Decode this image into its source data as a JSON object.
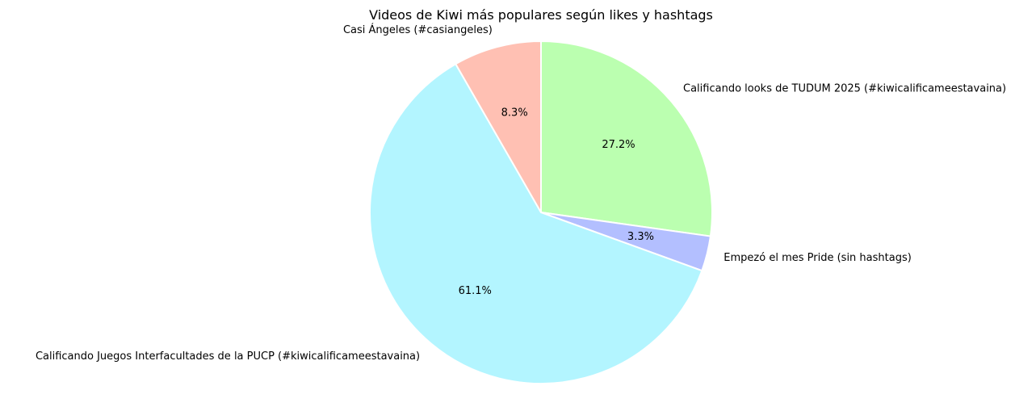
{
  "chart_data": {
    "type": "pie",
    "title": "Videos de Kiwi más populares según likes y hashtags",
    "start_angle_deg": 90,
    "direction": "clockwise",
    "slices": [
      {
        "label": "Calificando looks de TUDUM 2025 (#kiwicalificameestavaina)",
        "value": 27.2,
        "pct_label": "27.2%",
        "color": "#bbffb0"
      },
      {
        "label": "Empezó el mes Pride (sin hashtags)",
        "value": 3.3,
        "pct_label": "3.3%",
        "color": "#b3bfff"
      },
      {
        "label": "Calificando Juegos Interfacultades de la PUCP (#kiwicalificameestavaina)",
        "value": 61.1,
        "pct_label": "61.1%",
        "color": "#b3f5ff"
      },
      {
        "label": "Casi Ángeles (#casiangeles)",
        "value": 8.3,
        "pct_label": "8.3%",
        "color": "#ffc0b3"
      }
    ],
    "legend": "none",
    "edge_color": "#ffffff"
  }
}
